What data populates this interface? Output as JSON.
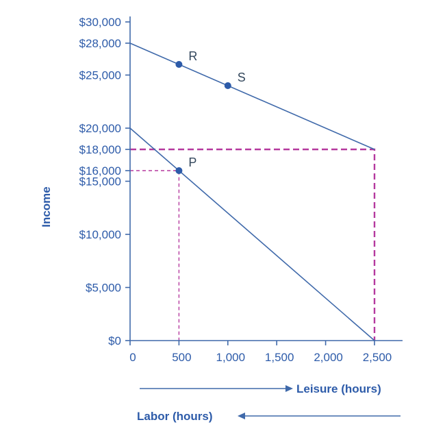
{
  "chart_data": {
    "type": "line",
    "xlabel": "Leisure (hours)",
    "xlabel_secondary": "Labor (hours)",
    "ylabel": "Income",
    "xlim": [
      0,
      2500
    ],
    "ylim": [
      0,
      30000
    ],
    "grid": false,
    "legend": false,
    "x_ticks": {
      "values": [
        0,
        500,
        1000,
        1500,
        2000,
        2500
      ],
      "labels": [
        "0",
        "500",
        "1,000",
        "1,500",
        "2,000",
        "2,500"
      ]
    },
    "y_ticks": {
      "values": [
        0,
        5000,
        10000,
        15000,
        16000,
        18000,
        20000,
        25000,
        28000,
        30000
      ],
      "labels": [
        "$0",
        "$5,000",
        "$10,000",
        "$15,000",
        "$16,000",
        "$18,000",
        "$20,000",
        "$25,000",
        "$28,000",
        "$30,000"
      ]
    },
    "series": [
      {
        "name": "upper-budget-line",
        "points": [
          [
            0,
            28000
          ],
          [
            2500,
            18000
          ]
        ]
      },
      {
        "name": "lower-budget-line",
        "points": [
          [
            0,
            20000
          ],
          [
            2500,
            0
          ]
        ]
      }
    ],
    "guides": [
      {
        "name": "income-18000-guide",
        "points": [
          [
            0,
            18000
          ],
          [
            2500,
            18000
          ],
          [
            2500,
            0
          ]
        ],
        "emphasis": "bold"
      },
      {
        "name": "point-p-guide",
        "points": [
          [
            0,
            16000
          ],
          [
            500,
            16000
          ],
          [
            500,
            0
          ]
        ],
        "emphasis": "light"
      }
    ],
    "points": [
      {
        "label": "R",
        "x": 500,
        "y": 26000
      },
      {
        "label": "S",
        "x": 1000,
        "y": 24000
      },
      {
        "label": "P",
        "x": 500,
        "y": 16000
      }
    ],
    "colors": {
      "axis": "#3f69aa",
      "line": "#3f69aa",
      "tick_text": "#2d5ba9",
      "guide": "#b5399e",
      "point": "#2d5ba9",
      "point_label": "#33475c",
      "arrow": "#3f69aa"
    }
  }
}
